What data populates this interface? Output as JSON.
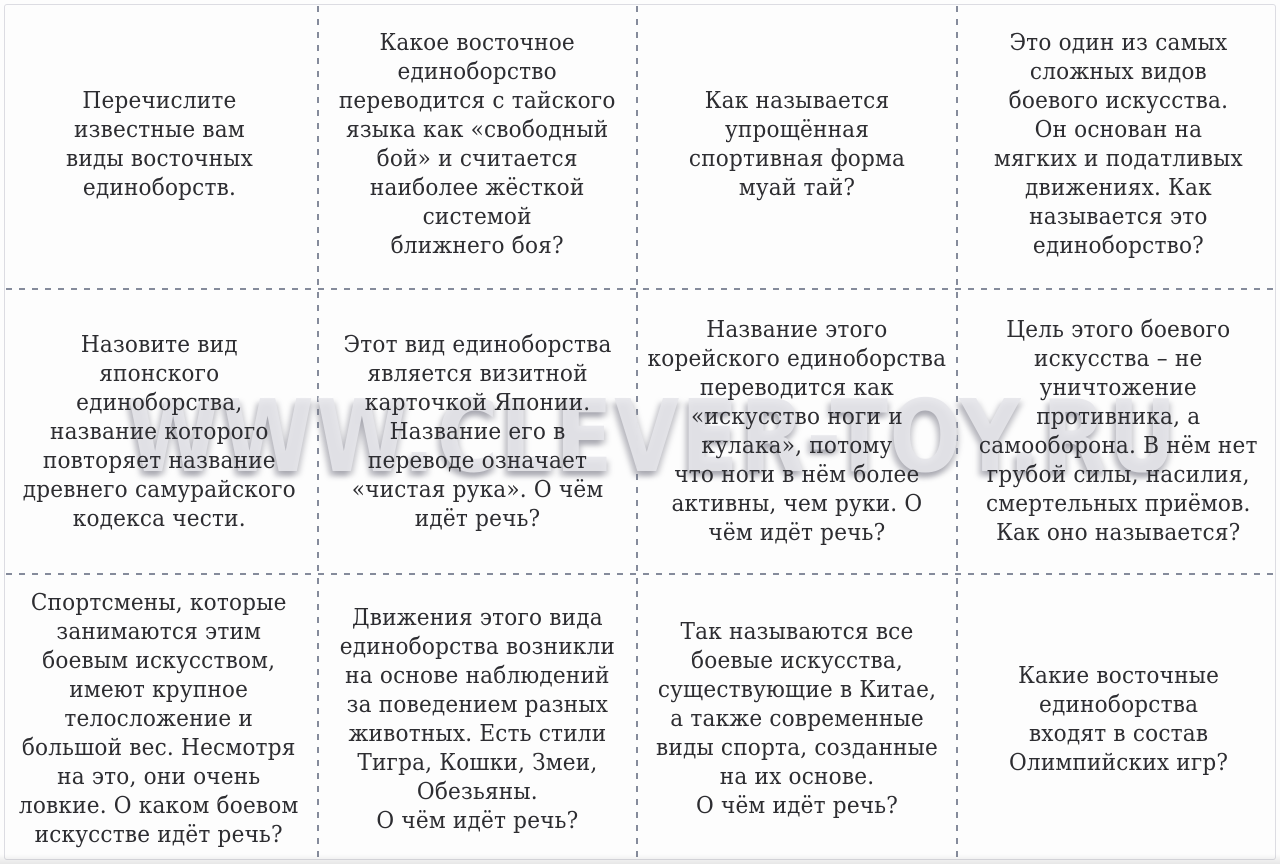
{
  "sheet": {
    "description": "Printable quiz card sheet, 12 question cards about eastern martial arts",
    "watermark": "WWW.CLEVER-TOY.RU",
    "grid": {
      "columns": 4,
      "rows": 3
    }
  },
  "colors": {
    "paper": "#fdfdfd",
    "text": "#2d2d31",
    "cut_line": "#858b9b",
    "watermark_shadow": "#78788a"
  },
  "cards": [
    {
      "position": "r1c1",
      "lines": [
        "Перечислите",
        "известные вам",
        "виды восточных",
        "единоборств."
      ]
    },
    {
      "position": "r1c2",
      "lines": [
        "Какое восточное",
        "единоборство",
        "переводится с тайского",
        "языка как «свободный",
        "бой» и считается",
        "наиболее жёсткой",
        "системой",
        "ближнего боя?"
      ]
    },
    {
      "position": "r1c3",
      "lines": [
        "Как называется",
        "упрощённая",
        "спортивная форма",
        "муай тай?"
      ]
    },
    {
      "position": "r1c4",
      "lines": [
        "Это один из самых",
        "сложных видов",
        "боевого искусства.",
        "Он основан на",
        "мягких и податливых",
        "движениях. Как",
        "называется это",
        "единоборство?"
      ]
    },
    {
      "position": "r2c1",
      "lines": [
        "Назовите вид",
        "японского",
        "единоборства,",
        "название которого",
        "повторяет название",
        "древнего самурайского",
        "кодекса чести."
      ]
    },
    {
      "position": "r2c2",
      "lines": [
        "Этот вид единоборства",
        "является визитной",
        "карточкой Японии.",
        "Название его в",
        "переводе означает",
        "«чистая рука». О чём",
        "идёт речь?"
      ]
    },
    {
      "position": "r2c3",
      "lines": [
        "Название этого",
        "корейского единоборства",
        "переводится как",
        "«искусство ноги и",
        "кулака», потому",
        "что ноги в нём более",
        "активны, чем руки. О",
        "чём идёт речь?"
      ]
    },
    {
      "position": "r2c4",
      "lines": [
        "Цель этого боевого",
        "искусства – не",
        "уничтожение",
        "противника, а",
        "самооборона. В нём нет",
        "грубой силы, насилия,",
        "смертельных приёмов.",
        "Как оно называется?"
      ]
    },
    {
      "position": "r3c1",
      "lines": [
        "Спортсмены, которые",
        "занимаются этим",
        "боевым искусством,",
        "имеют крупное",
        "телосложение и",
        "большой вес. Несмотря",
        "на это, они очень",
        "ловкие. О каком боевом",
        "искусстве идёт речь?"
      ]
    },
    {
      "position": "r3c2",
      "lines": [
        "Движения этого вида",
        "единоборства возникли",
        "на основе наблюдений",
        "за поведением разных",
        "животных. Есть стили",
        "Тигра, Кошки, Змеи,",
        "Обезьяны.",
        "О чём идёт речь?"
      ]
    },
    {
      "position": "r3c3",
      "lines": [
        "Так называются все",
        "боевые искусства,",
        "существующие в Китае,",
        "а также современные",
        "виды спорта, созданные",
        "на их основе.",
        "О чём идёт речь?"
      ]
    },
    {
      "position": "r3c4",
      "lines": [
        "Какие восточные",
        "единоборства",
        "входят в состав",
        "Олимпийских игр?"
      ]
    }
  ]
}
